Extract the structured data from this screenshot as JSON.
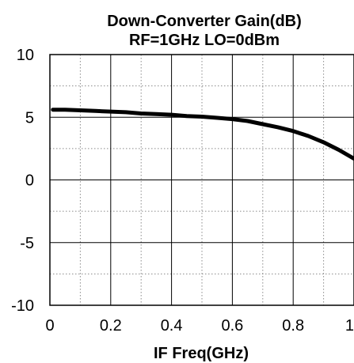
{
  "chart_data": {
    "type": "line",
    "title_lines": [
      "Down-Converter Gain(dB)",
      "RF=1GHz LO=0dBm"
    ],
    "xlabel": "IF Freq(GHz)",
    "ylabel": "",
    "xlim": [
      0,
      1
    ],
    "ylim": [
      -10,
      10
    ],
    "x_ticks": [
      0,
      0.2,
      0.4,
      0.6,
      0.8,
      1
    ],
    "x_tick_labels": [
      "0",
      "0.2",
      "0.4",
      "0.6",
      "0.8",
      "1"
    ],
    "x_minor_ticks": [
      0.1,
      0.3,
      0.5,
      0.7,
      0.9
    ],
    "y_ticks": [
      -10,
      -5,
      0,
      5,
      10
    ],
    "y_tick_labels": [
      "-10",
      "-5",
      "0",
      "5",
      "10"
    ],
    "y_minor_ticks": [
      -7.5,
      -2.5,
      2.5,
      7.5
    ],
    "grid": true,
    "legend": "none",
    "series": [
      {
        "color": "#000000",
        "x": [
          0.01,
          0.05,
          0.1,
          0.15,
          0.2,
          0.25,
          0.3,
          0.35,
          0.4,
          0.45,
          0.5,
          0.55,
          0.6,
          0.65,
          0.7,
          0.75,
          0.8,
          0.85,
          0.9,
          0.95,
          1.0
        ],
        "y": [
          5.6,
          5.6,
          5.55,
          5.5,
          5.45,
          5.4,
          5.3,
          5.25,
          5.2,
          5.1,
          5.05,
          4.95,
          4.85,
          4.7,
          4.45,
          4.2,
          3.9,
          3.5,
          3.0,
          2.4,
          1.7
        ]
      }
    ]
  }
}
